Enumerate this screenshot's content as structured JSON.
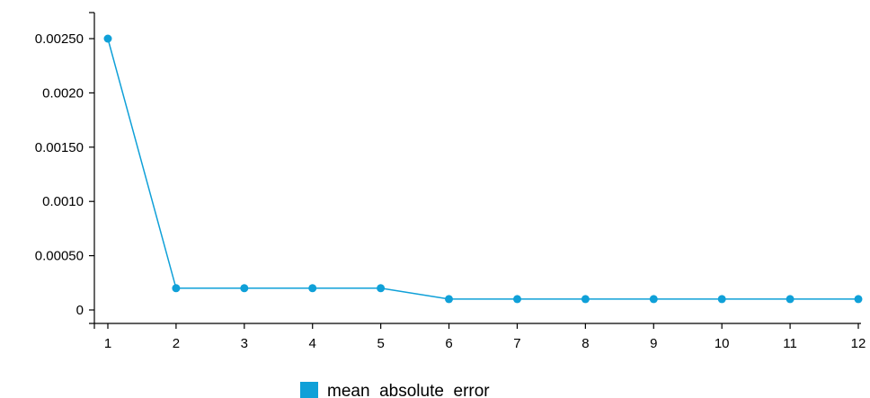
{
  "chart_data": {
    "type": "line",
    "title": "",
    "xlabel": "",
    "ylabel": "",
    "x": [
      1,
      2,
      3,
      4,
      5,
      6,
      7,
      8,
      9,
      10,
      11,
      12
    ],
    "series": [
      {
        "name": "mean_absolute_error",
        "values": [
          0.0025,
          0.0002,
          0.0002,
          0.0002,
          0.0002,
          0.0001,
          0.0001,
          0.0001,
          0.0001,
          0.0001,
          0.0001,
          0.0001
        ],
        "color": "#0fa0d8"
      }
    ],
    "xlim": [
      1,
      12
    ],
    "ylim": [
      0,
      0.0025
    ],
    "xticks": [
      1,
      2,
      3,
      4,
      5,
      6,
      7,
      8,
      9,
      10,
      11,
      12
    ],
    "yticks": [
      0,
      0.0005,
      0.001,
      0.0015,
      0.002,
      0.0025
    ],
    "ytick_labels": [
      "0",
      "0.00050",
      "0.0010",
      "0.00150",
      "0.0020",
      "0.00250"
    ],
    "grid": false,
    "legend_position": "bottom-center"
  }
}
